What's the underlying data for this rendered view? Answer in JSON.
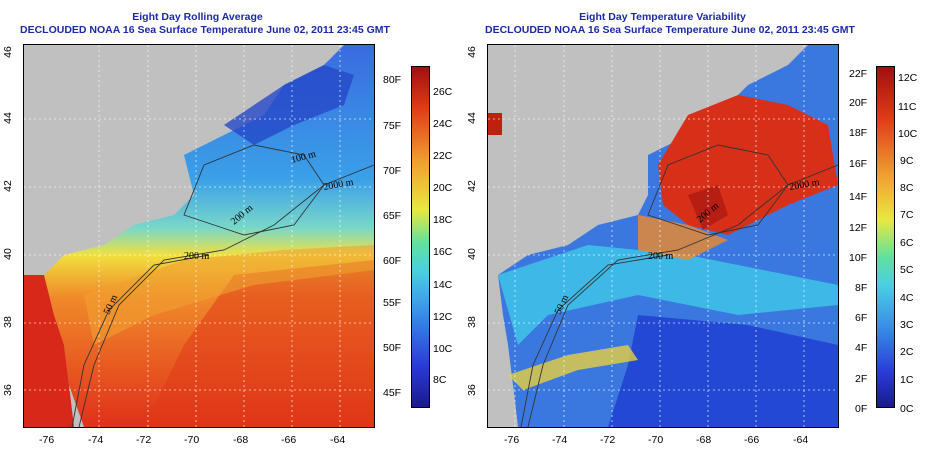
{
  "left": {
    "title_line1": "Eight Day Rolling Average",
    "title_line2": "DECLOUDED NOAA 16 Sea Surface Temperature June 02, 2011 23:45 GMT",
    "colorbar_F": [
      "80F",
      "75F",
      "70F",
      "65F",
      "60F",
      "55F",
      "50F",
      "45F"
    ],
    "colorbar_C": [
      "26C",
      "24C",
      "22C",
      "20C",
      "18C",
      "16C",
      "14C",
      "12C",
      "10C",
      "8C"
    ]
  },
  "right": {
    "title_line1": "Eight Day Temperature Variability",
    "title_line2": "DECLOUDED NOAA 16 Sea Surface Temperature June 02, 2011 23:45 GMT",
    "colorbar_F": [
      "22F",
      "20F",
      "18F",
      "16F",
      "14F",
      "12F",
      "10F",
      "8F",
      "6F",
      "4F",
      "2F",
      "0F"
    ],
    "colorbar_C": [
      "12C",
      "11C",
      "10C",
      "9C",
      "8C",
      "7C",
      "6C",
      "5C",
      "4C",
      "3C",
      "2C",
      "1C",
      "0C"
    ]
  },
  "x_ticks": [
    "-76",
    "-74",
    "-72",
    "-70",
    "-68",
    "-66",
    "-64"
  ],
  "y_ticks": [
    "36",
    "38",
    "40",
    "42",
    "44",
    "46"
  ],
  "contour_labels": [
    "50 m",
    "200 m",
    "200 m",
    "2000 m",
    "100 m"
  ],
  "colors": {
    "title": "#1a2aa8",
    "land": "#c0c0c0"
  }
}
